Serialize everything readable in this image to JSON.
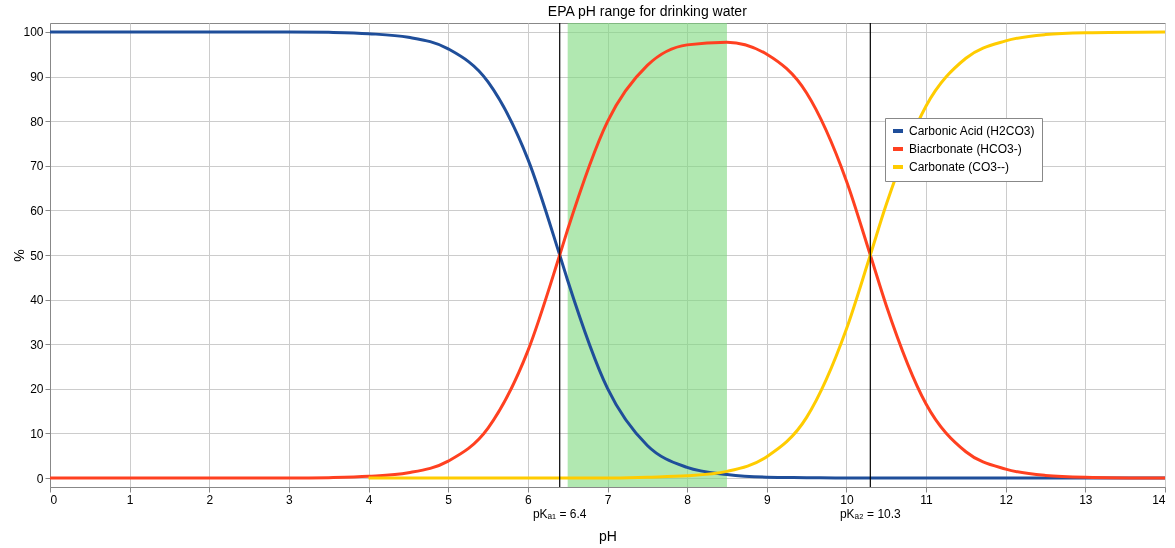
{
  "chart_data": {
    "type": "line",
    "xlabel": "pH",
    "ylabel": "%",
    "x": [
      0,
      1,
      2,
      3,
      3.5,
      4,
      4.5,
      5,
      5.5,
      6,
      6.4,
      6.5,
      7,
      7.5,
      8,
      8.5,
      9,
      9.5,
      10,
      10.3,
      10.5,
      11,
      11.5,
      12,
      12.5,
      13,
      14
    ],
    "series": [
      {
        "name": "Carbonic Acid (H2CO3)",
        "color": "#1f4e9a",
        "values": [
          100,
          100,
          100,
          100,
          99.9,
          99.6,
          98.8,
          96.2,
          88.8,
          71.5,
          50,
          44.3,
          20.1,
          7.3,
          2.4,
          0.8,
          0.2,
          0.1,
          0,
          0,
          0,
          0,
          0,
          0,
          0,
          0,
          0
        ]
      },
      {
        "name": "Biacrbonate (HCO3-)",
        "color": "#ff4020",
        "values": [
          0,
          0,
          0,
          0,
          0.1,
          0.4,
          1.2,
          3.8,
          11.2,
          28.5,
          50,
          55.7,
          79.9,
          92.5,
          97.1,
          97.7,
          95.0,
          86.3,
          66.6,
          50,
          38.7,
          16.6,
          5.9,
          2.0,
          0.6,
          0.2,
          0
        ]
      },
      {
        "name": "Carbonate (CO3--)",
        "color": "#ffcc00",
        "values": [
          null,
          null,
          null,
          null,
          null,
          0,
          0,
          0,
          0,
          0,
          0,
          0,
          0,
          0.2,
          0.5,
          1.5,
          4.8,
          13.6,
          33.4,
          50,
          61.3,
          83.4,
          94.1,
          98.0,
          99.4,
          99.8,
          100
        ]
      }
    ],
    "xlim": [
      0,
      14
    ],
    "xticks": [
      0,
      1,
      2,
      3,
      4,
      5,
      6,
      7,
      8,
      9,
      10,
      11,
      12,
      13,
      14
    ],
    "ylim": [
      -2,
      102
    ],
    "yticks": [
      0,
      10,
      20,
      30,
      40,
      50,
      60,
      70,
      80,
      90,
      100
    ],
    "bands": [
      {
        "axis": "x",
        "from": 6.5,
        "to": 8.5,
        "label": "EPA pH range for drinking water",
        "color": "#7dd87d"
      }
    ],
    "ref_lines": [
      {
        "axis": "x",
        "value": 6.4,
        "label": "pKₐ₁ = 6.4",
        "color": "#000000"
      },
      {
        "axis": "x",
        "value": 10.3,
        "label": "pKₐ₂ = 10.3",
        "color": "#000000"
      }
    ],
    "grid": true,
    "legend": "top right",
    "marker": "none",
    "line_style": "solid"
  }
}
